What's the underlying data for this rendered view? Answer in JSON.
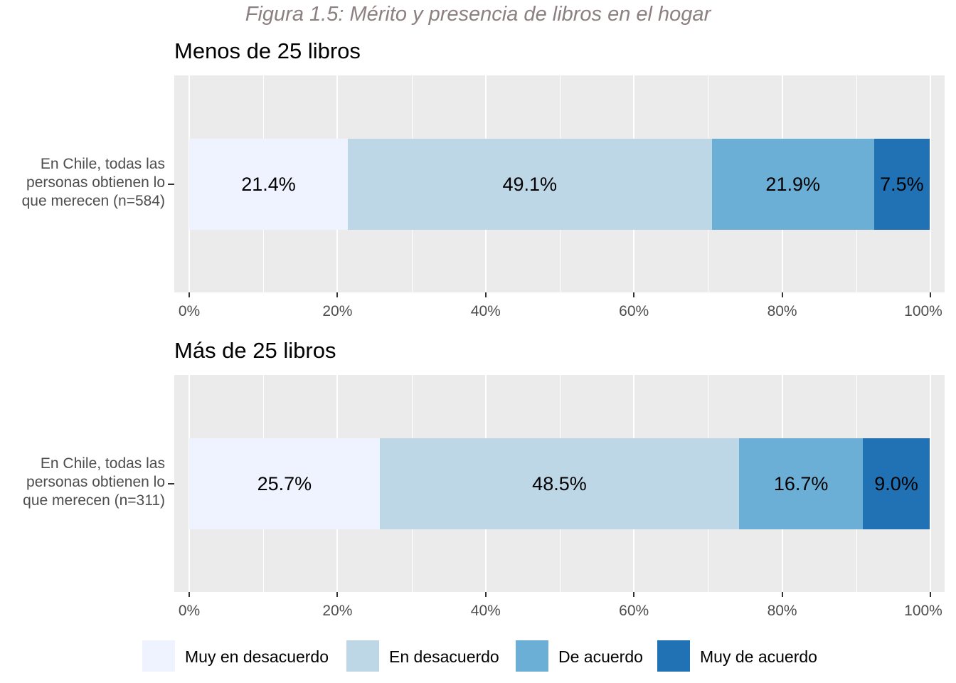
{
  "figure_title": "Figura 1.5: Mérito y presencia de libros en el hogar",
  "colors": {
    "Muy en desacuerdo": "#eff3ff",
    "En desacuerdo": "#bdd7e7",
    "De acuerdo": "#6baed6",
    "Muy de acuerdo": "#2171b5",
    "panel_bg": "#ebebeb"
  },
  "legend": [
    "Muy en desacuerdo",
    "En desacuerdo",
    "De acuerdo",
    "Muy de acuerdo"
  ],
  "chart_data": [
    {
      "type": "bar",
      "orientation": "horizontal-stacked",
      "title": "Menos de 25 libros",
      "categories": [
        "En Chile, todas las personas obtienen lo que merecen (n=584)"
      ],
      "category_lines": [
        "En Chile, todas las",
        "personas obtienen lo",
        "que merecen (n=584)"
      ],
      "series": [
        {
          "name": "Muy en desacuerdo",
          "values": [
            21.4
          ],
          "label": "21.4%"
        },
        {
          "name": "En desacuerdo",
          "values": [
            49.1
          ],
          "label": "49.1%"
        },
        {
          "name": "De acuerdo",
          "values": [
            21.9
          ],
          "label": "21.9%"
        },
        {
          "name": "Muy de acuerdo",
          "values": [
            7.5
          ],
          "label": "7.5%"
        }
      ],
      "xlim": [
        0,
        100
      ],
      "xticks": [
        "0%",
        "20%",
        "40%",
        "60%",
        "80%",
        "100%"
      ],
      "grid": true,
      "legend_position": "bottom"
    },
    {
      "type": "bar",
      "orientation": "horizontal-stacked",
      "title": "Más de 25 libros",
      "categories": [
        "En Chile, todas las personas obtienen lo que merecen (n=311)"
      ],
      "category_lines": [
        "En Chile, todas las",
        "personas obtienen lo",
        "que merecen (n=311)"
      ],
      "series": [
        {
          "name": "Muy en desacuerdo",
          "values": [
            25.7
          ],
          "label": "25.7%"
        },
        {
          "name": "En desacuerdo",
          "values": [
            48.5
          ],
          "label": "48.5%"
        },
        {
          "name": "De acuerdo",
          "values": [
            16.7
          ],
          "label": "16.7%"
        },
        {
          "name": "Muy de acuerdo",
          "values": [
            9.0
          ],
          "label": "9.0%"
        }
      ],
      "xlim": [
        0,
        100
      ],
      "xticks": [
        "0%",
        "20%",
        "40%",
        "60%",
        "80%",
        "100%"
      ],
      "grid": true,
      "legend_position": "bottom"
    }
  ]
}
